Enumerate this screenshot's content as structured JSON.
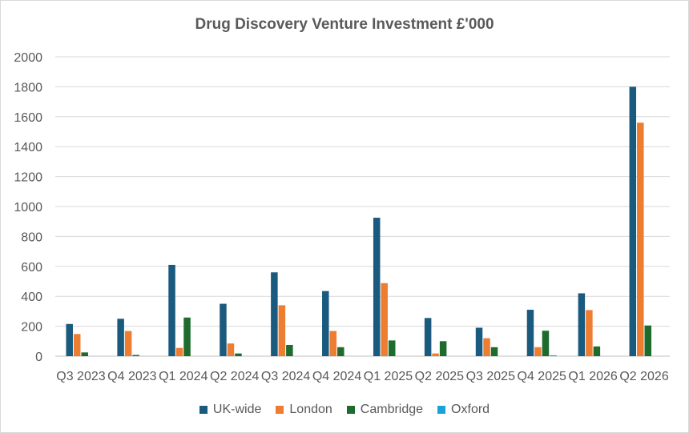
{
  "chart_data": {
    "type": "bar",
    "title": "Drug Discovery Venture Investment £'000",
    "categories": [
      "Q3 2023",
      "Q4 2023",
      "Q1 2024",
      "Q2 2024",
      "Q3 2024",
      "Q4 2024",
      "Q1 2025",
      "Q2 2025",
      "Q3 2025",
      "Q4 2025",
      "Q1 2026",
      "Q2 2026"
    ],
    "series": [
      {
        "name": "UK-wide",
        "color": "#1a5a7e",
        "values": [
          215,
          250,
          610,
          350,
          560,
          435,
          925,
          255,
          190,
          310,
          420,
          1800
        ]
      },
      {
        "name": "London",
        "color": "#ed7d31",
        "values": [
          148,
          168,
          55,
          85,
          340,
          168,
          488,
          18,
          120,
          60,
          308,
          1560
        ]
      },
      {
        "name": "Cambridge",
        "color": "#1e6b2e",
        "values": [
          25,
          8,
          258,
          18,
          75,
          60,
          105,
          100,
          60,
          170,
          65,
          205
        ]
      },
      {
        "name": "Oxford",
        "color": "#1aa3d9",
        "values": [
          0,
          0,
          0,
          0,
          0,
          0,
          0,
          0,
          0,
          6,
          0,
          0
        ]
      }
    ],
    "yticks": [
      "0",
      "200",
      "400",
      "600",
      "800",
      "1000",
      "1200",
      "1400",
      "1600",
      "1800",
      "2000"
    ],
    "ylim": [
      0,
      2000
    ],
    "grid": true,
    "legend_position": "bottom",
    "xlabel": "",
    "ylabel": ""
  }
}
